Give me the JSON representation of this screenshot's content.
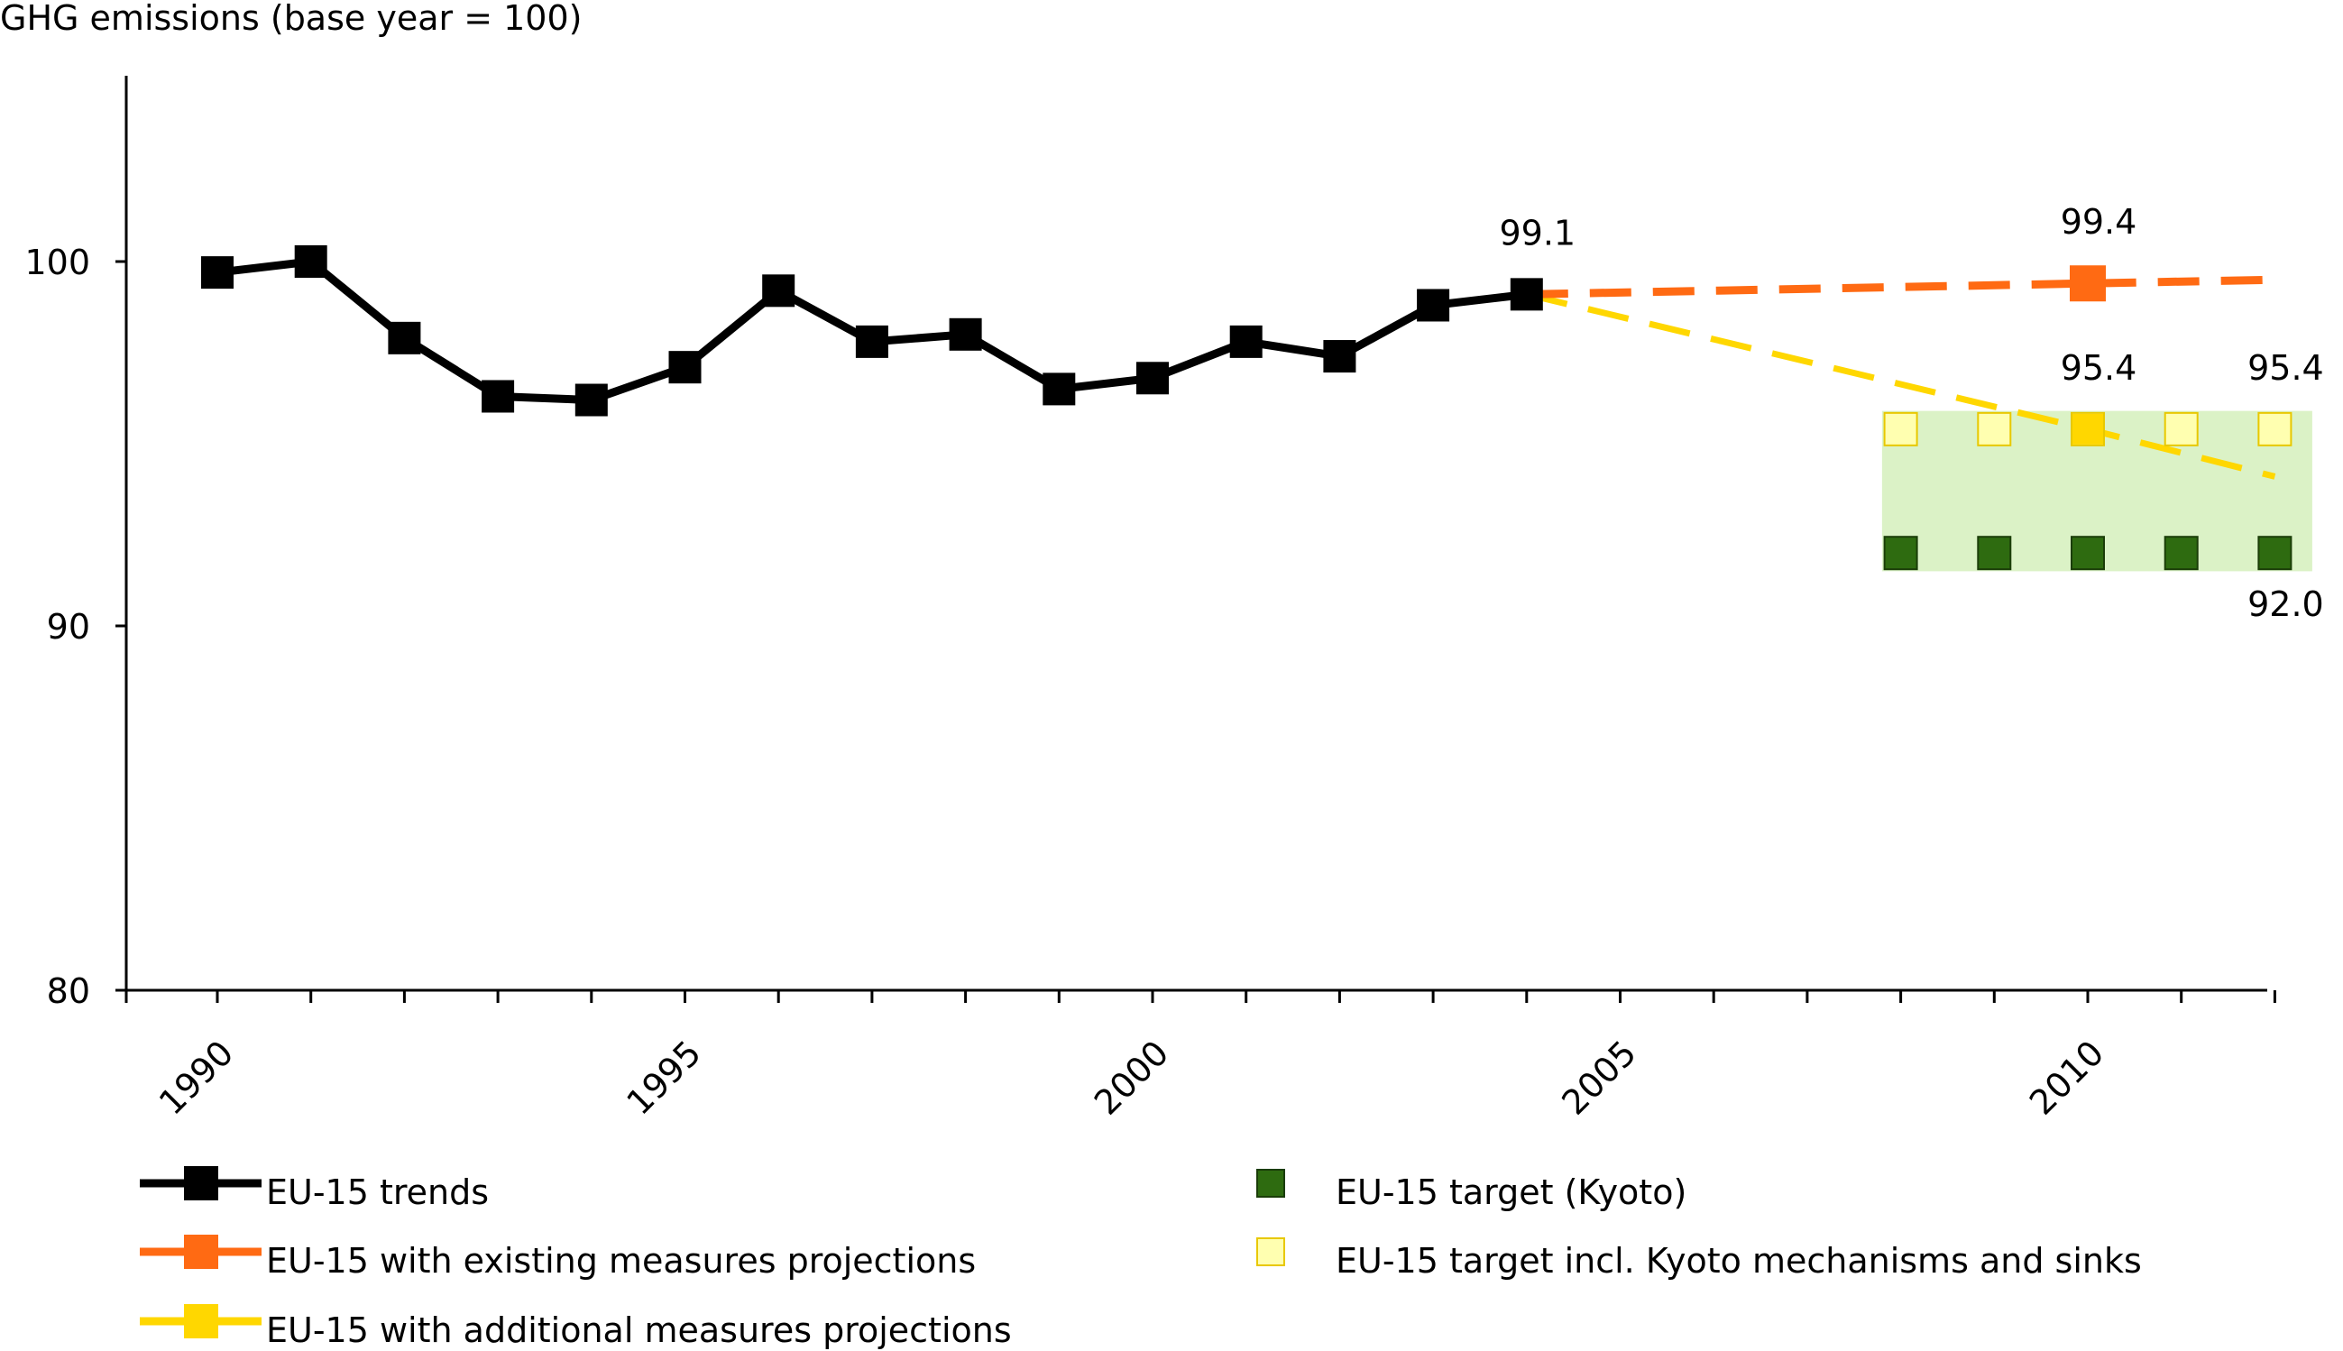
{
  "chart_data": {
    "type": "line",
    "title": "GHG emissions (base year = 100)",
    "xlabel": "",
    "ylabel": "",
    "xlim": [
      1989,
      2012
    ],
    "ylim": [
      80,
      105
    ],
    "x_ticks": [
      1990,
      1995,
      2000,
      2005,
      2010
    ],
    "x_tick_labels": [
      "1990",
      "1995",
      "2000",
      "2005",
      "2010"
    ],
    "y_ticks": [
      80,
      90,
      100
    ],
    "y_tick_labels": [
      "80",
      "90",
      "100"
    ],
    "grid": false,
    "legend_position": "bottom",
    "series": [
      {
        "key": "trends",
        "name": "EU-15  trends",
        "style": "solid-line-square-markers",
        "color": "#000000",
        "x": [
          1990,
          1991,
          1992,
          1993,
          1994,
          1995,
          1996,
          1997,
          1998,
          1999,
          2000,
          2001,
          2002,
          2003,
          2004
        ],
        "y": [
          99.7,
          100.0,
          97.9,
          96.3,
          96.2,
          97.1,
          99.2,
          97.8,
          98.0,
          96.5,
          96.8,
          97.8,
          97.4,
          98.8,
          99.1
        ]
      },
      {
        "key": "existing",
        "name": "EU-15  with existing measures projections",
        "style": "dashed-line",
        "color": "#ff6a13",
        "x": [
          2004,
          2010,
          2012
        ],
        "y": [
          99.1,
          99.4,
          99.5
        ],
        "marker_x": [
          2010
        ],
        "marker_y": [
          99.4
        ]
      },
      {
        "key": "additional",
        "name": "EU-15  with additional measures projections",
        "style": "dashed-line",
        "color": "#ffd700",
        "x": [
          2004,
          2010,
          2012
        ],
        "y": [
          99.1,
          95.4,
          94.1
        ],
        "marker_x": [
          2010
        ],
        "marker_y": [
          95.4
        ]
      },
      {
        "key": "kyoto",
        "name": "EU-15 target (Kyoto)",
        "style": "square-markers",
        "color": "#2e6b10",
        "x": [
          2008,
          2009,
          2010,
          2011,
          2012
        ],
        "y": [
          92.0,
          92.0,
          92.0,
          92.0,
          92.0
        ]
      },
      {
        "key": "kyoto_mech",
        "name": "EU-15 target incl. Kyoto mechanisms and sinks",
        "style": "square-markers",
        "color": "#ffffb0",
        "x": [
          2008,
          2009,
          2010,
          2011,
          2012
        ],
        "y": [
          95.4,
          95.4,
          95.4,
          95.4,
          95.4
        ]
      }
    ],
    "target_band": {
      "x": [
        2007.8,
        2012.4
      ],
      "y": [
        91.5,
        95.9
      ],
      "color": "#dbf2c6"
    },
    "annotations": [
      {
        "text": "99.1",
        "x": 2004,
        "y": 99.1,
        "anchor": "above"
      },
      {
        "text": "99.4",
        "x": 2010,
        "y": 99.4,
        "anchor": "above"
      },
      {
        "text": "95.4",
        "x": 2010,
        "y": 95.4,
        "anchor": "above"
      },
      {
        "text": "95.4",
        "x": 2012,
        "y": 95.4,
        "anchor": "above"
      },
      {
        "text": "92.0",
        "x": 2012,
        "y": 92.0,
        "anchor": "below"
      }
    ],
    "colors": {
      "axis": "#000000",
      "trends": "#000000",
      "existing": "#ff6a13",
      "additional": "#ffd700",
      "kyoto": "#2e6b10",
      "kyoto_mech": "#ffffb0",
      "kyoto_mech_border": "#e8c800",
      "band": "#dbf2c6"
    }
  }
}
